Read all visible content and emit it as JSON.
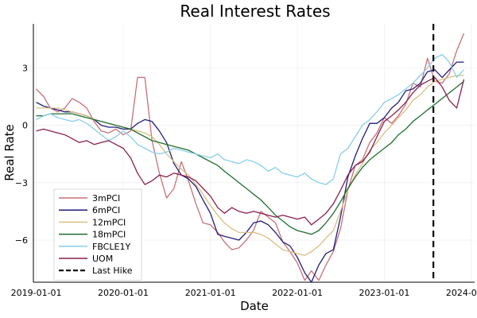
{
  "chart_data": {
    "type": "line",
    "title": "Real Interest Rates",
    "xlabel": "Date",
    "ylabel": "Real Rate",
    "xlim": [
      "2018-12-20",
      "2024-01-15"
    ],
    "ylim": [
      -8.2,
      5.3
    ],
    "x_ticks": [
      "2019-01-01",
      "2020-01-01",
      "2021-01-01",
      "2022-01-01",
      "2023-01-01",
      "2024-01-01"
    ],
    "y_ticks": [
      3,
      0,
      -3,
      -6
    ],
    "y_tick_labels": [
      "3",
      "0",
      "−3",
      "−6"
    ],
    "grid": true,
    "legend_position": "bottom-left",
    "vline": {
      "x": "2023-07-26",
      "name": "Last Hike",
      "color": "#000000",
      "style": "dashed"
    },
    "x": [
      "2019-01-01",
      "2019-02-01",
      "2019-03-01",
      "2019-04-01",
      "2019-05-01",
      "2019-06-01",
      "2019-07-01",
      "2019-08-01",
      "2019-09-01",
      "2019-10-01",
      "2019-11-01",
      "2019-12-01",
      "2020-01-01",
      "2020-02-01",
      "2020-03-01",
      "2020-04-01",
      "2020-05-01",
      "2020-06-01",
      "2020-07-01",
      "2020-08-01",
      "2020-09-01",
      "2020-10-01",
      "2020-11-01",
      "2020-12-01",
      "2021-01-01",
      "2021-02-01",
      "2021-03-01",
      "2021-04-01",
      "2021-05-01",
      "2021-06-01",
      "2021-07-01",
      "2021-08-01",
      "2021-09-01",
      "2021-10-01",
      "2021-11-01",
      "2021-12-01",
      "2022-01-01",
      "2022-02-01",
      "2022-03-01",
      "2022-04-01",
      "2022-05-01",
      "2022-06-01",
      "2022-07-01",
      "2022-08-01",
      "2022-09-01",
      "2022-10-01",
      "2022-11-01",
      "2022-12-01",
      "2023-01-01",
      "2023-02-01",
      "2023-03-01",
      "2023-04-01",
      "2023-05-01",
      "2023-06-01",
      "2023-07-01",
      "2023-08-01",
      "2023-09-01",
      "2023-10-01",
      "2023-11-01",
      "2023-12-01"
    ],
    "series": [
      {
        "name": "3mPCI",
        "color": "#c8707a",
        "values": [
          1.9,
          1.5,
          0.9,
          0.7,
          0.9,
          1.4,
          1.2,
          0.9,
          0.2,
          -0.3,
          -0.4,
          -0.2,
          -0.5,
          -0.3,
          2.5,
          2.5,
          -0.8,
          -2.5,
          -3.8,
          -3.3,
          -1.9,
          -2.9,
          -4.1,
          -5.1,
          -5.2,
          -5.6,
          -6.1,
          -6.5,
          -6.4,
          -6.0,
          -5.5,
          -4.5,
          -4.8,
          -5.1,
          -6.1,
          -6.6,
          -7.2,
          -8.1,
          -7.6,
          -8.1,
          -7.3,
          -6.6,
          -5.4,
          -3.4,
          -2.1,
          -1.8,
          -0.9,
          -0.4,
          0.4,
          0.1,
          0.5,
          1.1,
          2.2,
          2.0,
          3.5,
          2.3,
          2.2,
          2.7,
          3.9,
          4.8
        ]
      },
      {
        "name": "6mPCI",
        "color": "#1f1d7a",
        "values": [
          1.2,
          1.0,
          0.9,
          0.8,
          0.7,
          0.7,
          0.6,
          0.5,
          0.3,
          0.0,
          -0.1,
          -0.1,
          -0.2,
          -0.2,
          0.1,
          0.3,
          0.2,
          -0.3,
          -0.9,
          -2.0,
          -2.6,
          -2.8,
          -3.2,
          -3.9,
          -4.6,
          -5.7,
          -5.8,
          -5.9,
          -6.0,
          -5.6,
          -5.1,
          -5.0,
          -5.2,
          -5.6,
          -6.1,
          -6.3,
          -6.9,
          -7.7,
          -8.2,
          -7.3,
          -6.7,
          -6.5,
          -4.8,
          -2.7,
          -1.6,
          -0.7,
          0.1,
          0.1,
          0.4,
          0.9,
          1.2,
          1.8,
          1.9,
          2.2,
          2.8,
          2.9,
          2.5,
          2.9,
          3.3,
          3.3
        ]
      },
      {
        "name": "12mPCI",
        "color": "#d9be82",
        "values": [
          0.9,
          0.9,
          0.9,
          0.9,
          0.8,
          0.7,
          0.6,
          0.5,
          0.3,
          0.2,
          0.1,
          0.0,
          -0.1,
          -0.2,
          -0.3,
          -0.4,
          -0.6,
          -1.0,
          -1.5,
          -1.9,
          -2.3,
          -2.6,
          -3.1,
          -3.6,
          -4.2,
          -4.7,
          -5.1,
          -5.4,
          -5.6,
          -5.6,
          -5.6,
          -5.7,
          -5.9,
          -6.2,
          -6.5,
          -6.6,
          -6.7,
          -6.8,
          -6.6,
          -6.3,
          -5.9,
          -5.5,
          -4.5,
          -3.4,
          -2.6,
          -2.0,
          -1.3,
          -0.9,
          -0.4,
          0.0,
          0.4,
          0.8,
          1.3,
          1.6,
          2.0,
          2.3,
          2.4,
          2.5,
          2.6,
          2.6
        ]
      },
      {
        "name": "18mPCI",
        "color": "#1f6e2e",
        "values": [
          0.5,
          0.5,
          0.6,
          0.6,
          0.6,
          0.6,
          0.5,
          0.4,
          0.3,
          0.2,
          0.1,
          0.0,
          -0.1,
          -0.2,
          -0.4,
          -0.6,
          -0.8,
          -0.9,
          -1.0,
          -1.1,
          -1.2,
          -1.3,
          -1.5,
          -1.7,
          -1.9,
          -2.1,
          -2.4,
          -2.7,
          -3.0,
          -3.3,
          -3.6,
          -3.9,
          -4.3,
          -4.7,
          -5.0,
          -5.3,
          -5.5,
          -5.6,
          -5.7,
          -5.5,
          -5.1,
          -4.6,
          -4.0,
          -3.3,
          -2.7,
          -2.2,
          -1.8,
          -1.5,
          -1.2,
          -0.9,
          -0.5,
          -0.2,
          0.2,
          0.5,
          0.8,
          1.1,
          1.4,
          1.7,
          2.0,
          2.3
        ]
      },
      {
        "name": "FBCLE1Y",
        "color": "#87ceeb",
        "values": [
          0.3,
          0.5,
          0.6,
          0.4,
          0.3,
          0.2,
          0.3,
          0.1,
          -0.2,
          -0.5,
          -0.8,
          -0.6,
          -0.3,
          -0.6,
          -1.0,
          -1.2,
          -1.4,
          -1.5,
          -1.4,
          -1.2,
          -1.3,
          -1.4,
          -1.5,
          -1.6,
          -1.7,
          -1.5,
          -1.8,
          -1.9,
          -2.0,
          -1.8,
          -1.9,
          -2.1,
          -2.4,
          -2.2,
          -2.5,
          -2.6,
          -2.7,
          -2.5,
          -2.8,
          -3.0,
          -3.1,
          -2.8,
          -1.5,
          -1.2,
          -0.6,
          0.0,
          0.3,
          0.7,
          1.2,
          1.4,
          1.6,
          1.9,
          2.2,
          2.6,
          3.0,
          3.5,
          3.7,
          3.3,
          2.5,
          2.9
        ]
      },
      {
        "name": "UOM",
        "color": "#8a1f4e",
        "values": [
          -0.3,
          -0.2,
          -0.3,
          -0.4,
          -0.5,
          -0.7,
          -0.9,
          -0.8,
          -1.0,
          -0.9,
          -0.8,
          -1.0,
          -1.2,
          -1.7,
          -2.5,
          -3.1,
          -2.9,
          -2.6,
          -2.7,
          -2.5,
          -2.6,
          -2.7,
          -2.9,
          -3.3,
          -3.7,
          -4.3,
          -4.6,
          -4.3,
          -4.5,
          -4.6,
          -4.5,
          -4.6,
          -4.7,
          -4.8,
          -4.7,
          -4.8,
          -4.9,
          -4.8,
          -5.2,
          -4.9,
          -4.6,
          -4.1,
          -3.4,
          -2.6,
          -2.1,
          -1.9,
          -1.4,
          -0.6,
          0.2,
          0.5,
          0.8,
          1.2,
          1.7,
          2.1,
          2.3,
          2.5,
          2.0,
          1.3,
          0.9,
          2.4
        ]
      }
    ]
  }
}
